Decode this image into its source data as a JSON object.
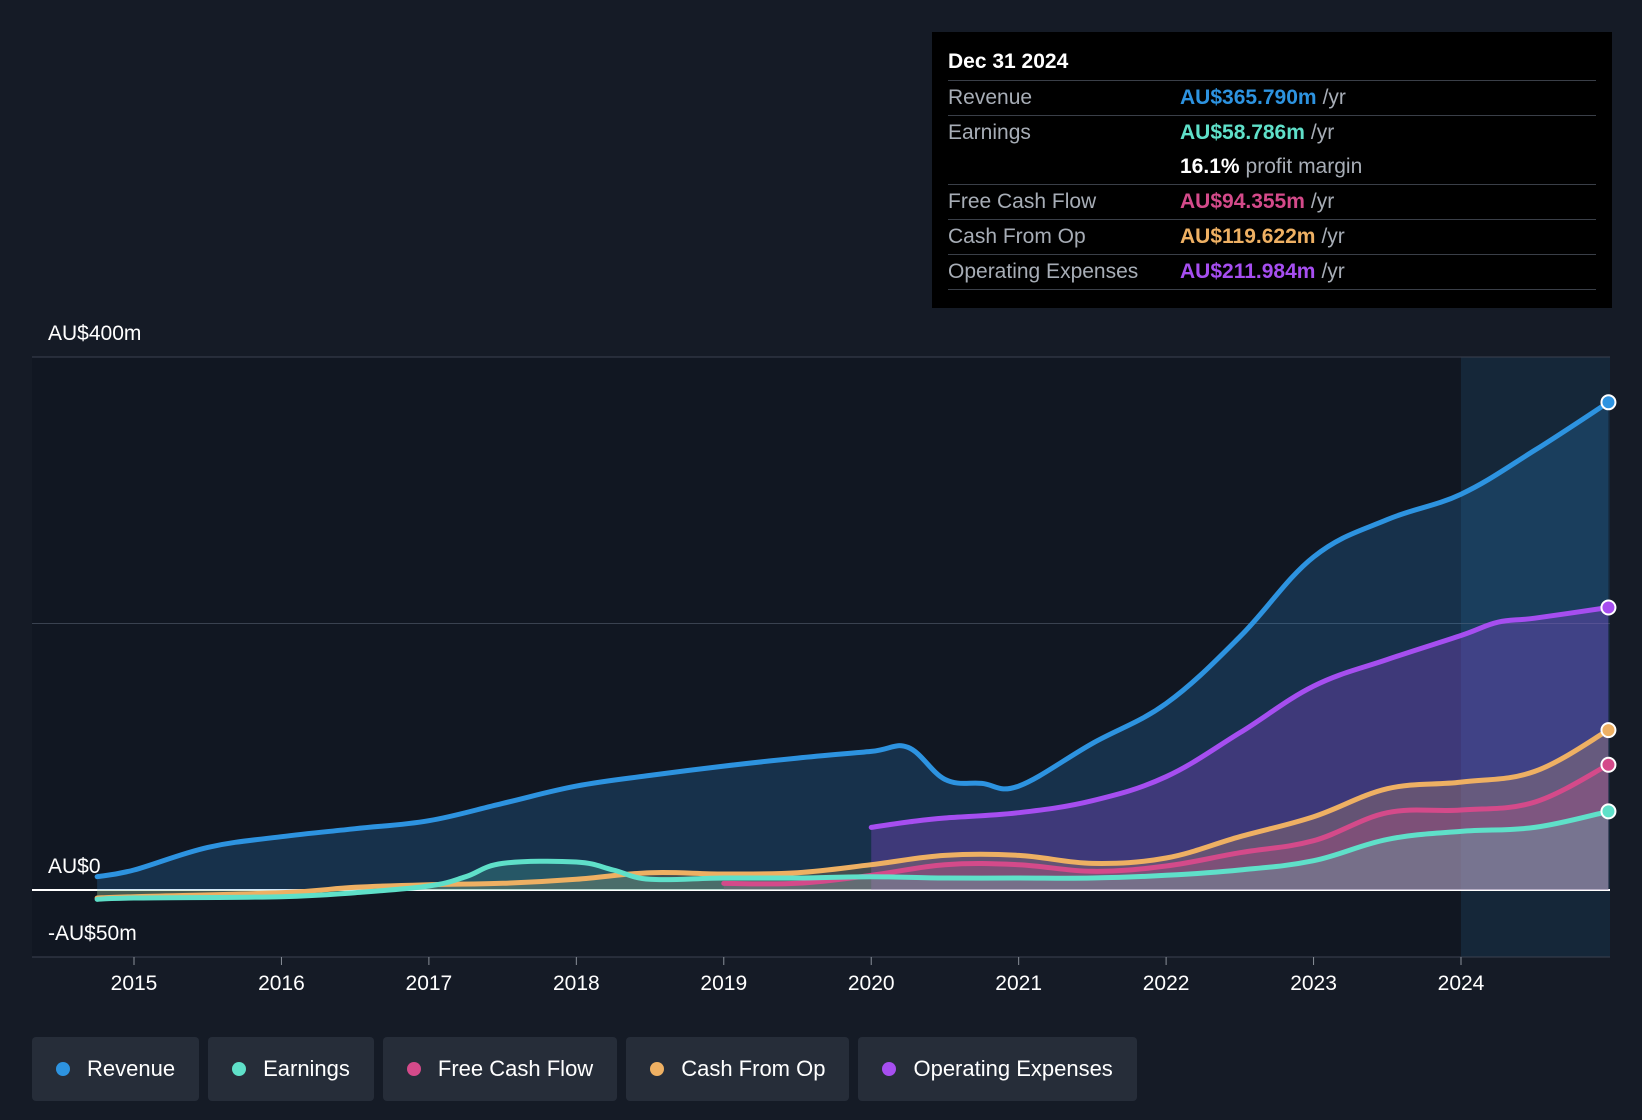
{
  "colors": {
    "revenue": "#2d93e0",
    "earnings": "#5fe0c9",
    "free_cash_flow": "#d44a8a",
    "cash_from_op": "#eeb063",
    "operating_expenses": "#a64ef0"
  },
  "tooltip": {
    "date": "Dec 31 2024",
    "rows": [
      {
        "name": "Revenue",
        "value": "AU$365.790m",
        "unit": "/yr"
      },
      {
        "name": "Earnings",
        "value": "AU$58.786m",
        "unit": "/yr"
      },
      {
        "name": "",
        "margin_value": "16.1%",
        "margin_label": "profit margin"
      },
      {
        "name": "Free Cash Flow",
        "value": "AU$94.355m",
        "unit": "/yr"
      },
      {
        "name": "Cash From Op",
        "value": "AU$119.622m",
        "unit": "/yr"
      },
      {
        "name": "Operating Expenses",
        "value": "AU$211.984m",
        "unit": "/yr"
      }
    ]
  },
  "legend": [
    {
      "label": "Revenue",
      "key": "revenue"
    },
    {
      "label": "Earnings",
      "key": "earnings"
    },
    {
      "label": "Free Cash Flow",
      "key": "free_cash_flow"
    },
    {
      "label": "Cash From Op",
      "key": "cash_from_op"
    },
    {
      "label": "Operating Expenses",
      "key": "operating_expenses"
    }
  ],
  "chart_data": {
    "type": "area",
    "title": "",
    "xlabel": "",
    "ylabel": "",
    "xlim": [
      2014.0,
      2025.0
    ],
    "ylim": [
      -50,
      400
    ],
    "y_tick_labels": [
      {
        "value": 400,
        "label": "AU$400m"
      },
      {
        "value": 0,
        "label": "AU$0"
      },
      {
        "value": -50,
        "label": "-AU$50m"
      }
    ],
    "gridlines": [
      400,
      200,
      0
    ],
    "x_ticks": [
      2015,
      2016,
      2017,
      2018,
      2019,
      2020,
      2021,
      2022,
      2023,
      2024
    ],
    "x_tick_labels": [
      "2015",
      "2016",
      "2017",
      "2018",
      "2019",
      "2020",
      "2021",
      "2022",
      "2023",
      "2024"
    ],
    "highlight_start": 2024.0,
    "series": [
      {
        "name": "Revenue",
        "key": "revenue",
        "x": [
          2014.75,
          2015.0,
          2015.5,
          2016.0,
          2016.5,
          2017.0,
          2017.5,
          2018.0,
          2018.5,
          2019.0,
          2019.5,
          2020.0,
          2020.25,
          2020.5,
          2020.75,
          2021.0,
          2021.5,
          2022.0,
          2022.5,
          2023.0,
          2023.5,
          2024.0,
          2024.5,
          2025.0
        ],
        "values": [
          10,
          15,
          32,
          40,
          46,
          52,
          65,
          78,
          86,
          93,
          99,
          104,
          107,
          83,
          80,
          78,
          110,
          140,
          190,
          250,
          278,
          297,
          330,
          366
        ]
      },
      {
        "name": "Earnings",
        "key": "earnings",
        "x": [
          2014.75,
          2015.0,
          2016.0,
          2016.5,
          2017.0,
          2017.25,
          2017.5,
          2018.0,
          2018.25,
          2018.5,
          2019.0,
          2019.5,
          2020.0,
          2020.5,
          2021.0,
          2021.5,
          2022.0,
          2022.5,
          2023.0,
          2023.5,
          2024.0,
          2024.5,
          2025.0
        ],
        "values": [
          -7,
          -6,
          -5,
          -2,
          3,
          10,
          20,
          21,
          15,
          8,
          9,
          9,
          10,
          9,
          9,
          9,
          11,
          15,
          22,
          38,
          44,
          47,
          59
        ]
      },
      {
        "name": "Free Cash Flow",
        "key": "free_cash_flow",
        "x": [
          2019.0,
          2019.5,
          2020.0,
          2020.5,
          2021.0,
          2021.5,
          2022.0,
          2022.5,
          2023.0,
          2023.5,
          2024.0,
          2024.5,
          2025.0
        ],
        "values": [
          5,
          5,
          11,
          19,
          19,
          14,
          18,
          28,
          37,
          58,
          60,
          66,
          94
        ]
      },
      {
        "name": "Cash From Op",
        "key": "cash_from_op",
        "x": [
          2014.75,
          2015.0,
          2016.0,
          2016.5,
          2017.0,
          2017.5,
          2018.0,
          2018.5,
          2019.0,
          2019.5,
          2020.0,
          2020.5,
          2021.0,
          2021.5,
          2022.0,
          2022.5,
          2023.0,
          2023.5,
          2024.0,
          2024.5,
          2025.0
        ],
        "values": [
          -6,
          -5,
          -2,
          2,
          4,
          5,
          8,
          13,
          12,
          13,
          19,
          26,
          26,
          20,
          24,
          40,
          55,
          76,
          81,
          89,
          120
        ]
      },
      {
        "name": "Operating Expenses",
        "key": "operating_expenses",
        "x": [
          2020.0,
          2020.25,
          2020.5,
          2021.0,
          2021.5,
          2022.0,
          2022.5,
          2023.0,
          2023.5,
          2024.0,
          2024.25,
          2024.5,
          2025.0
        ],
        "values": [
          47,
          51,
          54,
          58,
          67,
          85,
          118,
          153,
          173,
          191,
          201,
          204,
          212
        ]
      }
    ]
  }
}
